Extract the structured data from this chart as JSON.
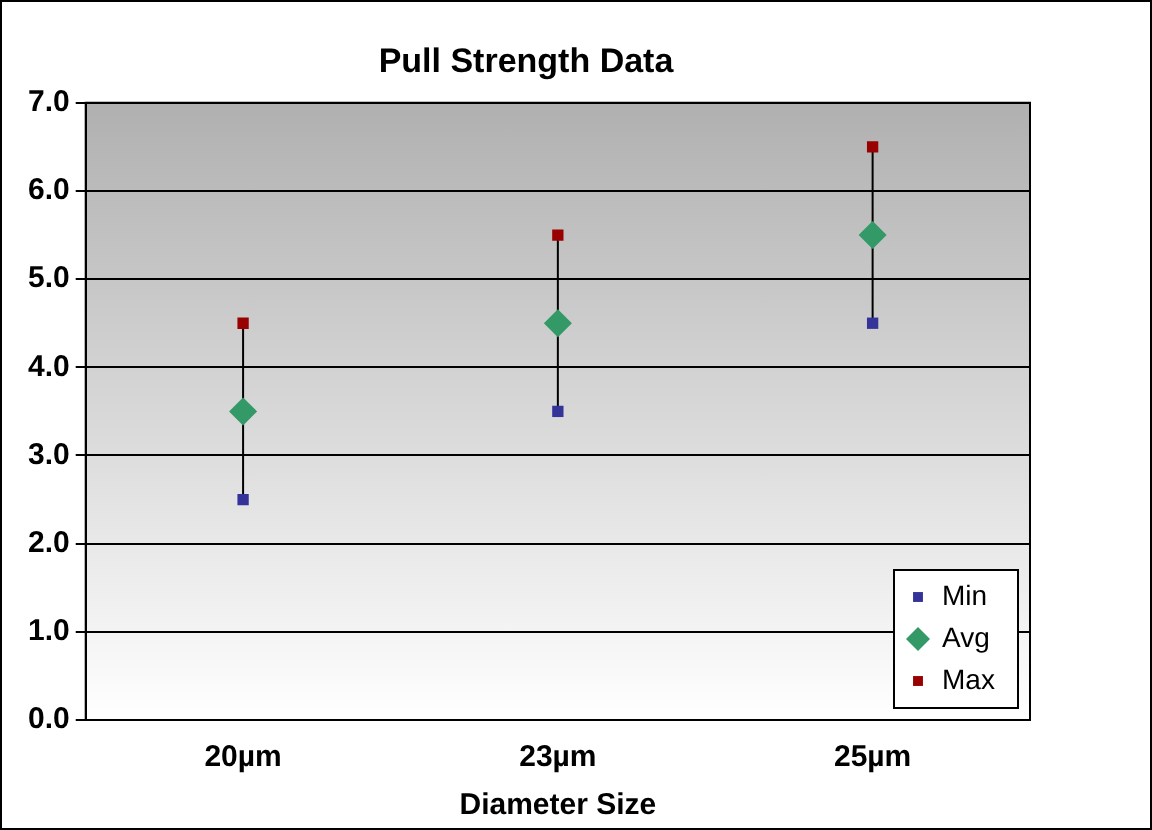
{
  "chart_data": {
    "type": "scatter",
    "title": "Pull Strength Data",
    "xlabel": "Diameter Size",
    "categories": [
      "20µm",
      "23µm",
      "25µm"
    ],
    "series": [
      {
        "name": "Min",
        "color": "#333399",
        "marker": "square",
        "values": [
          2.5,
          3.5,
          4.5
        ]
      },
      {
        "name": "Avg",
        "color": "#339966",
        "marker": "diamond",
        "values": [
          3.5,
          4.5,
          5.5
        ]
      },
      {
        "name": "Max",
        "color": "#990000",
        "marker": "square",
        "values": [
          4.5,
          5.5,
          6.5
        ]
      }
    ],
    "ylim": [
      0,
      7
    ],
    "yticks": [
      {
        "value": 0,
        "label": "0.0"
      },
      {
        "value": 1,
        "label": "1.0"
      },
      {
        "value": 2,
        "label": "2.0"
      },
      {
        "value": 3,
        "label": "3.0"
      },
      {
        "value": 4,
        "label": "4.0"
      },
      {
        "value": 5,
        "label": "5.0"
      },
      {
        "value": 6,
        "label": "6.0"
      },
      {
        "value": 7,
        "label": "7.0"
      }
    ],
    "grid": "y",
    "legend": "bottom right"
  }
}
